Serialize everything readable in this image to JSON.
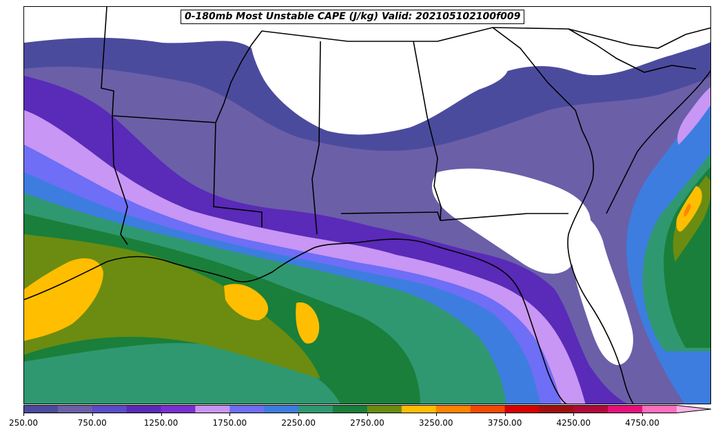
{
  "title": "0-180mb Most Unstable CAPE (J/kg) Valid: 202105102100f009",
  "colorbar": {
    "colors": [
      "#4b4b9e",
      "#6b5fa8",
      "#5b4cc8",
      "#5a2ab8",
      "#7a30d0",
      "#c896f4",
      "#6e6ef6",
      "#3d7de0",
      "#2f9870",
      "#1a7f3a",
      "#6b8c10",
      "#ffbe00",
      "#ff8400",
      "#f54a00",
      "#d60000",
      "#a01010",
      "#b00a3a",
      "#e8107a",
      "#ff6ec0",
      "#ffb4e6"
    ],
    "tick_labels": [
      "250.00",
      "750.00",
      "1250.00",
      "1750.00",
      "2250.00",
      "2750.00",
      "3250.00",
      "3750.00",
      "4250.00",
      "4750.00"
    ],
    "extend": "max"
  },
  "map_colors": {
    "background": "#ffffff",
    "band_250": "#4b4b9e",
    "band_750": "#6b5fa8",
    "band_1000": "#5a2ab8",
    "band_1250": "#c896f4",
    "band_1500": "#6e6ef6",
    "band_1750": "#3d7de0",
    "band_2000": "#2f9870",
    "band_2250": "#1a7f3a",
    "band_2500": "#6b8c10",
    "band_2750": "#ffbe00",
    "band_3000": "#ff8400",
    "borders": "#000000"
  }
}
